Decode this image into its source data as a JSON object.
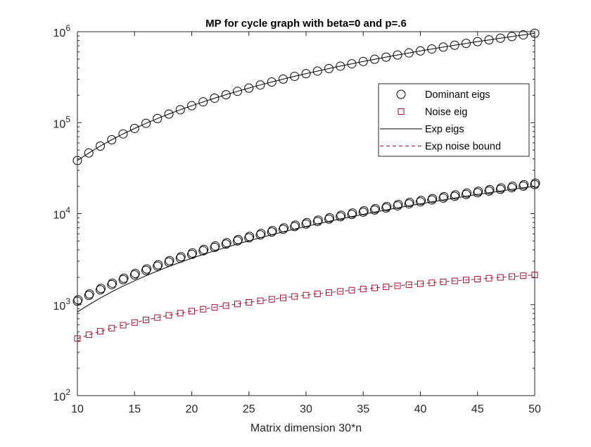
{
  "chart_data": {
    "type": "scatter",
    "title": "MP for cycle graph with beta=0 and p=.6",
    "xlabel": "Matrix dimension 30*n",
    "ylabel": "",
    "xlim": [
      10,
      50
    ],
    "ylim": [
      100,
      1000000
    ],
    "yscale": "log",
    "grid": false,
    "legend_placement": "top-right",
    "xticks": [
      10,
      15,
      20,
      25,
      30,
      35,
      40,
      45,
      50
    ],
    "yticks": [
      {
        "base": "10",
        "exp": "2",
        "value": 100
      },
      {
        "base": "10",
        "exp": "3",
        "value": 1000
      },
      {
        "base": "10",
        "exp": "4",
        "value": 10000
      },
      {
        "base": "10",
        "exp": "5",
        "value": 100000
      },
      {
        "base": "10",
        "exp": "6",
        "value": 1000000
      }
    ],
    "x": [
      10,
      11,
      12,
      13,
      14,
      15,
      16,
      17,
      18,
      19,
      20,
      21,
      22,
      23,
      24,
      25,
      26,
      27,
      28,
      29,
      30,
      31,
      32,
      33,
      34,
      35,
      36,
      37,
      38,
      39,
      40,
      41,
      42,
      43,
      44,
      45,
      46,
      47,
      48,
      49,
      50
    ],
    "series": [
      {
        "name": "Dominant eigs",
        "style": "circle",
        "color": "#000000",
        "values": [
          [
            38400,
            46464,
            55296,
            64896,
            75264,
            86400,
            98304,
            110976,
            124416,
            138624,
            153600,
            169344,
            185856,
            203136,
            221184,
            240000,
            259584,
            279936,
            301056,
            322944,
            345600,
            369024,
            393216,
            418176,
            443904,
            470400,
            497664,
            525696,
            554496,
            584064,
            614400,
            645504,
            677376,
            710016,
            743424,
            777600,
            812544,
            848256,
            884736,
            921984,
            960000
          ],
          [
            1090,
            1263,
            1453,
            1659,
            1882,
            2121,
            2377,
            2649,
            2938,
            3243,
            3565,
            3903,
            4258,
            4629,
            5017,
            5421,
            5842,
            6279,
            6733,
            7203,
            7690,
            8193,
            8713,
            9249,
            9802,
            10371,
            10957,
            11559,
            12178,
            12813,
            13465,
            14133,
            14818,
            15519,
            16237,
            16971,
            17722,
            18489,
            19273,
            20073,
            20890
          ]
        ]
      },
      {
        "name": "Noise eig",
        "style": "square",
        "color": "#a2142f",
        "values": [
          [
            424,
            466,
            509,
            551,
            594,
            636,
            678,
            721,
            763,
            806,
            848,
            890,
            933,
            975,
            1018,
            1060,
            1102,
            1145,
            1187,
            1230,
            1272,
            1314,
            1357,
            1399,
            1442,
            1484,
            1526,
            1569,
            1611,
            1654,
            1696,
            1738,
            1781,
            1823,
            1866,
            1908,
            1950,
            1993,
            2035,
            2078,
            2120
          ]
        ]
      },
      {
        "name": "Exp eigs",
        "style": "solid",
        "color": "#000000",
        "values": [
          [
            38400,
            46464,
            55296,
            64896,
            75264,
            86400,
            98304,
            110976,
            124416,
            138624,
            153600,
            169344,
            185856,
            203136,
            221184,
            240000,
            259584,
            279936,
            301056,
            322944,
            345600,
            369024,
            393216,
            418176,
            443904,
            470400,
            497664,
            525696,
            554496,
            584064,
            614400,
            645504,
            677376,
            710016,
            743424,
            777600,
            812544,
            848256,
            884736,
            921984,
            960000
          ],
          [
            830,
            998,
            1182,
            1382,
            1598,
            1830,
            2078,
            2342,
            2622,
            2918,
            3230,
            3558,
            3902,
            4262,
            4638,
            5030,
            5438,
            5862,
            6302,
            6758,
            7230,
            7718,
            8222,
            8742,
            9278,
            9830,
            10398,
            10982,
            11582,
            12198,
            12830,
            13478,
            14142,
            14822,
            15518,
            16230,
            16958,
            17702,
            18462,
            19238,
            20030
          ]
        ]
      },
      {
        "name": "Exp noise bound",
        "style": "dashed",
        "color": "#a2142f",
        "values": [
          [
            424,
            466,
            509,
            551,
            594,
            636,
            678,
            721,
            763,
            806,
            848,
            890,
            933,
            975,
            1018,
            1060,
            1102,
            1145,
            1187,
            1230,
            1272,
            1314,
            1357,
            1399,
            1442,
            1484,
            1526,
            1569,
            1611,
            1654,
            1696,
            1738,
            1781,
            1823,
            1866,
            1908,
            1950,
            1993,
            2035,
            2078,
            2120
          ]
        ]
      }
    ]
  }
}
